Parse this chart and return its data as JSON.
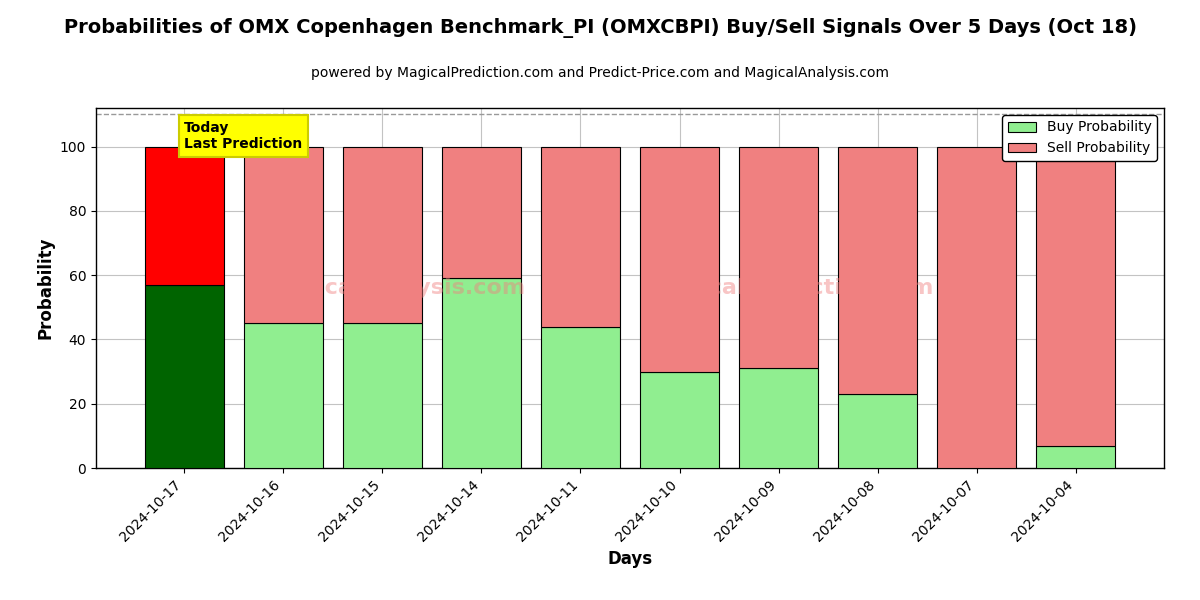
{
  "title": "Probabilities of OMX Copenhagen Benchmark_PI (OMXCBPI) Buy/Sell Signals Over 5 Days (Oct 18)",
  "subtitle": "powered by MagicalPrediction.com and Predict-Price.com and MagicalAnalysis.com",
  "xlabel": "Days",
  "ylabel": "Probability",
  "dates": [
    "2024-10-17",
    "2024-10-16",
    "2024-10-15",
    "2024-10-14",
    "2024-10-11",
    "2024-10-10",
    "2024-10-09",
    "2024-10-08",
    "2024-10-07",
    "2024-10-04"
  ],
  "buy_values": [
    57,
    45,
    45,
    59,
    44,
    30,
    31,
    23,
    0,
    7
  ],
  "sell_values": [
    43,
    55,
    55,
    41,
    56,
    70,
    69,
    77,
    100,
    93
  ],
  "today_bar_buy_color": "#006400",
  "today_bar_sell_color": "#FF0000",
  "buy_color": "#90EE90",
  "sell_color": "#F08080",
  "legend_buy_color": "#90EE90",
  "legend_sell_color": "#F08080",
  "today_label_bg": "#FFFF00",
  "today_label_text": "Today\nLast Prediction",
  "ylim": [
    0,
    112
  ],
  "dashed_line_y": 110,
  "bar_edge_color": "#000000",
  "bar_linewidth": 0.8,
  "title_fontsize": 14,
  "subtitle_fontsize": 10,
  "ylabel_fontsize": 12,
  "xlabel_fontsize": 12,
  "tick_fontsize": 10,
  "legend_fontsize": 10,
  "grid_color": "#AAAAAA",
  "grid_alpha": 0.7,
  "bg_color": "#FFFFFF"
}
